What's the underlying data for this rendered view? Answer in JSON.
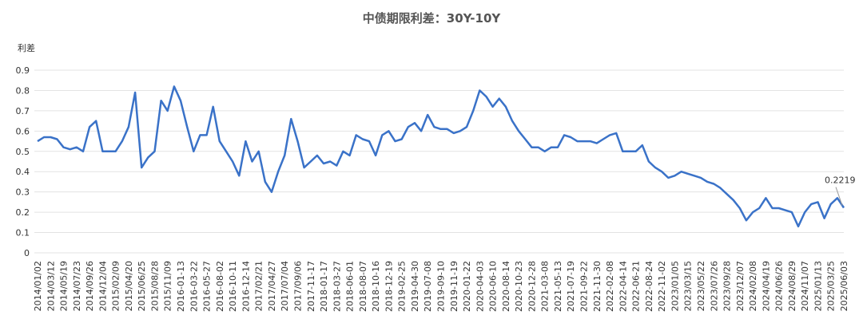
{
  "chart_data": {
    "type": "line",
    "title": "中债期限利差：30Y-10Y",
    "y_label": "利差",
    "categories": [
      "2014/01/02",
      null,
      "2014/03/12",
      null,
      "2014/05/19",
      null,
      "2014/07/23",
      null,
      "2014/09/26",
      null,
      "2014/12/04",
      null,
      "2015/02/09",
      null,
      "2015/04/20",
      null,
      "2015/06/25",
      null,
      "2015/08/28",
      null,
      "2015/11/09",
      null,
      "2016-01-13",
      null,
      "2016-03-22",
      null,
      "2016-05-27",
      null,
      "2016-08-02",
      null,
      "2016-10-11",
      null,
      "2016-12-14",
      null,
      "2017/02/21",
      null,
      "2017/04/27",
      null,
      "2017/07/04",
      null,
      "2017/09/06",
      null,
      "2017-11-17",
      null,
      "2018-01-17",
      null,
      "2018-03-27",
      null,
      "2018-06-01",
      null,
      "2018-08-07",
      null,
      "2018-10-16",
      null,
      "2018-12-19",
      null,
      "2019-02-25",
      null,
      "2019-04-30",
      null,
      "2019-07-08",
      null,
      "2019-09-10",
      null,
      "2019-11-19",
      null,
      "2020-01-22",
      null,
      "2020-04-03",
      null,
      "2020-06-10",
      null,
      "2020-08-14",
      null,
      "2020-10-23",
      null,
      "2020-12-28",
      null,
      "2021-03-08",
      null,
      "2021-05-13",
      null,
      "2021-07-19",
      null,
      "2021-09-22",
      null,
      "2021-11-30",
      null,
      "2022-02-08",
      null,
      "2022-04-14",
      null,
      "2022-06-21",
      null,
      "2022-08-24",
      null,
      "2022-11-02",
      null,
      "2023/01/05",
      null,
      "2023/03/15",
      null,
      "2023/05/22",
      null,
      "2023/07/26",
      null,
      "2023/09/28",
      null,
      "2023/12/07",
      null,
      "2024/02/08",
      null,
      "2024/04/19",
      null,
      "2024/06/26",
      null,
      "2024/08/29",
      null,
      "2024/11/07",
      null,
      "2025/01/13",
      null,
      "2025/03/25",
      null,
      "2025/06/03"
    ],
    "values": [
      0.55,
      0.57,
      0.57,
      0.56,
      0.52,
      0.51,
      0.52,
      0.5,
      0.62,
      0.65,
      0.5,
      0.5,
      0.5,
      0.55,
      0.62,
      0.79,
      0.42,
      0.47,
      0.5,
      0.75,
      0.7,
      0.82,
      0.75,
      0.62,
      0.5,
      0.58,
      0.58,
      0.72,
      0.55,
      0.5,
      0.45,
      0.38,
      0.55,
      0.45,
      0.5,
      0.35,
      0.3,
      0.4,
      0.48,
      0.66,
      0.55,
      0.42,
      0.45,
      0.48,
      0.44,
      0.45,
      0.43,
      0.5,
      0.48,
      0.58,
      0.56,
      0.55,
      0.48,
      0.58,
      0.6,
      0.55,
      0.56,
      0.62,
      0.64,
      0.6,
      0.68,
      0.62,
      0.61,
      0.61,
      0.59,
      0.6,
      0.62,
      0.7,
      0.8,
      0.77,
      0.72,
      0.76,
      0.72,
      0.65,
      0.6,
      0.56,
      0.52,
      0.52,
      0.5,
      0.52,
      0.52,
      0.58,
      0.57,
      0.55,
      0.55,
      0.55,
      0.54,
      0.56,
      0.58,
      0.59,
      0.5,
      0.5,
      0.5,
      0.53,
      0.45,
      0.42,
      0.4,
      0.37,
      0.38,
      0.4,
      0.39,
      0.38,
      0.37,
      0.35,
      0.34,
      0.32,
      0.29,
      0.26,
      0.22,
      0.16,
      0.2,
      0.22,
      0.27,
      0.22,
      0.22,
      0.21,
      0.2,
      0.13,
      0.2,
      0.24,
      0.25,
      0.17,
      0.24,
      0.27,
      0.2219
    ],
    "color": "#3a72c8",
    "ylim": [
      0,
      0.9
    ],
    "yticks": [
      0,
      0.1,
      0.2,
      0.3,
      0.4,
      0.5,
      0.6,
      0.7,
      0.8,
      0.9
    ],
    "grid": true
  }
}
